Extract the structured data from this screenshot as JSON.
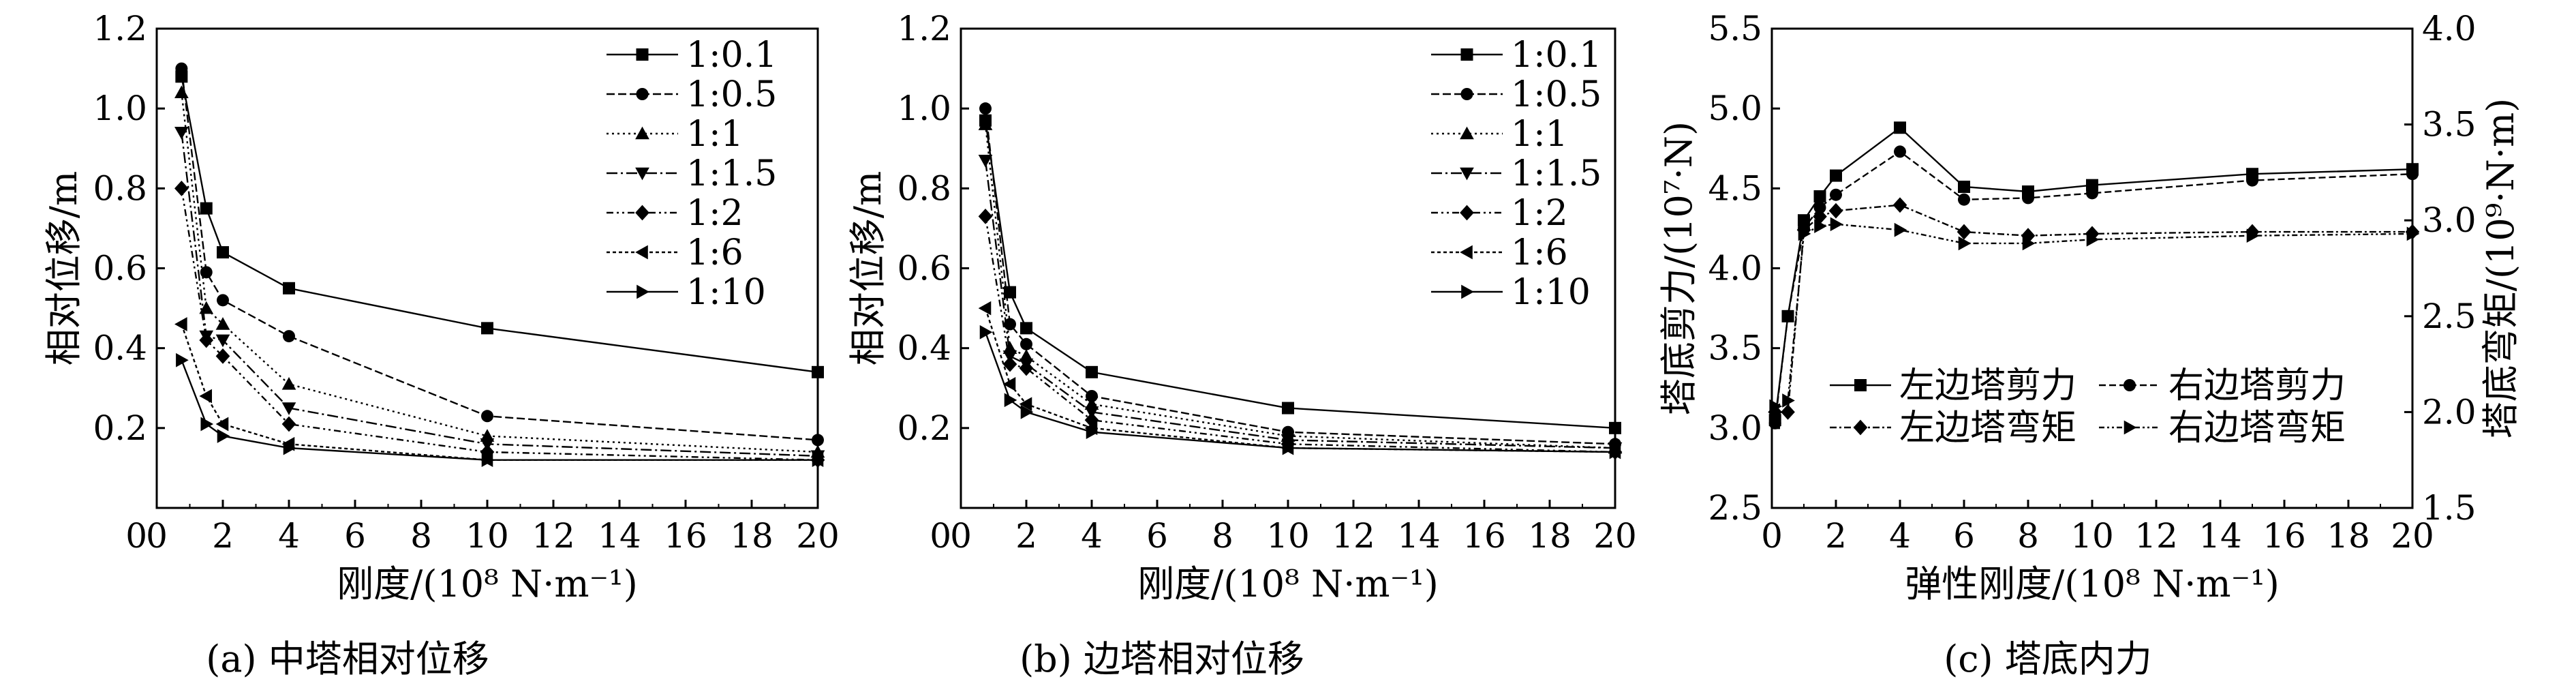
{
  "figure": {
    "panels": [
      {
        "caption": "(a) 中塔相对位移"
      },
      {
        "caption": "(b) 边塔相对位移"
      },
      {
        "caption": "(c) 塔底内力"
      }
    ]
  },
  "chart_data": [
    {
      "type": "line",
      "caption": "(a) 中塔相对位移",
      "ylabel": "相对位移/m",
      "xlabel": "刚度/(10⁸ N·m⁻¹)",
      "xlim": [
        0,
        20
      ],
      "ylim": [
        0,
        1.2
      ],
      "xticks": [
        "0",
        "2",
        "4",
        "6",
        "8",
        "10",
        "12",
        "14",
        "16",
        "18",
        "20"
      ],
      "yticks": [
        "0.2",
        "0.4",
        "0.6",
        "0.8",
        "1.0",
        "1.2"
      ],
      "y_origin_label": "0",
      "legend": "top-right",
      "series": [
        {
          "name": "1:0.1",
          "marker": "square",
          "dash": "",
          "x": [
            0.75,
            1.5,
            2,
            4,
            10,
            20
          ],
          "y": [
            1.08,
            0.75,
            0.64,
            0.55,
            0.45,
            0.34
          ]
        },
        {
          "name": "1:0.5",
          "marker": "circle",
          "dash": "12 5",
          "x": [
            0.75,
            1.5,
            2,
            4,
            10,
            20
          ],
          "y": [
            1.1,
            0.59,
            0.52,
            0.43,
            0.23,
            0.17
          ]
        },
        {
          "name": "1:1",
          "marker": "triangle-up",
          "dash": "3 5",
          "x": [
            0.75,
            1.5,
            2,
            4,
            10,
            20
          ],
          "y": [
            1.04,
            0.5,
            0.46,
            0.31,
            0.18,
            0.14
          ]
        },
        {
          "name": "1:1.5",
          "marker": "triangle-down",
          "dash": "16 5 3 5",
          "x": [
            0.75,
            1.5,
            2,
            4,
            10,
            20
          ],
          "y": [
            0.94,
            0.43,
            0.42,
            0.25,
            0.16,
            0.13
          ]
        },
        {
          "name": "1:2",
          "marker": "diamond",
          "dash": "10 5 3 5 3 5",
          "x": [
            0.75,
            1.5,
            2,
            4,
            10,
            20
          ],
          "y": [
            0.8,
            0.42,
            0.38,
            0.21,
            0.14,
            0.12
          ]
        },
        {
          "name": "1:6",
          "marker": "triangle-left",
          "dash": "5 4",
          "x": [
            0.75,
            1.5,
            2,
            4,
            10,
            20
          ],
          "y": [
            0.46,
            0.28,
            0.21,
            0.16,
            0.12,
            0.12
          ]
        },
        {
          "name": "1:10",
          "marker": "triangle-right",
          "dash": "",
          "x": [
            0.75,
            1.5,
            2,
            4,
            10,
            20
          ],
          "y": [
            0.37,
            0.21,
            0.18,
            0.15,
            0.12,
            0.12
          ]
        }
      ]
    },
    {
      "type": "line",
      "caption": "(b) 边塔相对位移",
      "ylabel": "相对位移/m",
      "xlabel": "刚度/(10⁸ N·m⁻¹)",
      "xlim": [
        0,
        20
      ],
      "ylim": [
        0,
        1.2
      ],
      "xticks": [
        "0",
        "2",
        "4",
        "6",
        "8",
        "10",
        "12",
        "14",
        "16",
        "18",
        "20"
      ],
      "yticks": [
        "0.2",
        "0.4",
        "0.6",
        "0.8",
        "1.0",
        "1.2"
      ],
      "y_origin_label": "0",
      "legend": "top-right",
      "series": [
        {
          "name": "1:0.1",
          "marker": "square",
          "dash": "",
          "x": [
            0.75,
            1.5,
            2,
            4,
            10,
            20
          ],
          "y": [
            0.97,
            0.54,
            0.45,
            0.34,
            0.25,
            0.2
          ]
        },
        {
          "name": "1:0.5",
          "marker": "circle",
          "dash": "12 5",
          "x": [
            0.75,
            1.5,
            2,
            4,
            10,
            20
          ],
          "y": [
            1.0,
            0.46,
            0.41,
            0.28,
            0.19,
            0.16
          ]
        },
        {
          "name": "1:1",
          "marker": "triangle-up",
          "dash": "3 5",
          "x": [
            0.75,
            1.5,
            2,
            4,
            10,
            20
          ],
          "y": [
            0.96,
            0.4,
            0.38,
            0.26,
            0.18,
            0.15
          ]
        },
        {
          "name": "1:1.5",
          "marker": "triangle-down",
          "dash": "16 5 3 5",
          "x": [
            0.75,
            1.5,
            2,
            4,
            10,
            20
          ],
          "y": [
            0.87,
            0.38,
            0.36,
            0.24,
            0.17,
            0.15
          ]
        },
        {
          "name": "1:2",
          "marker": "diamond",
          "dash": "10 5 3 5 3 5",
          "x": [
            0.75,
            1.5,
            2,
            4,
            10,
            20
          ],
          "y": [
            0.73,
            0.36,
            0.35,
            0.22,
            0.16,
            0.14
          ]
        },
        {
          "name": "1:6",
          "marker": "triangle-left",
          "dash": "5 4",
          "x": [
            0.75,
            1.5,
            2,
            4,
            10,
            20
          ],
          "y": [
            0.5,
            0.31,
            0.26,
            0.2,
            0.15,
            0.14
          ]
        },
        {
          "name": "1:10",
          "marker": "triangle-right",
          "dash": "",
          "x": [
            0.75,
            1.5,
            2,
            4,
            10,
            20
          ],
          "y": [
            0.44,
            0.27,
            0.24,
            0.19,
            0.15,
            0.14
          ]
        }
      ]
    },
    {
      "type": "line",
      "caption": "(c) 塔底内力",
      "ylabel": "塔底剪力/(10⁷·N)",
      "ylabel2": "塔底弯矩/(10⁹·N·m)",
      "xlabel": "弹性刚度/(10⁸ N·m⁻¹)",
      "xlim": [
        0,
        20
      ],
      "ylim": [
        2.5,
        5.5
      ],
      "y2lim": [
        1.5,
        4.0
      ],
      "xticks": [
        "0",
        "2",
        "4",
        "6",
        "8",
        "10",
        "12",
        "14",
        "16",
        "18",
        "20"
      ],
      "yticks": [
        "2.5",
        "3.0",
        "3.5",
        "4.0",
        "4.5",
        "5.0",
        "5.5"
      ],
      "y2ticks": [
        "1.5",
        "2.0",
        "2.5",
        "3.0",
        "3.5",
        "4.0"
      ],
      "legend": "lower-center",
      "series": [
        {
          "name": "左边塔剪力",
          "axis": "left",
          "marker": "square",
          "dash": "",
          "x": [
            0.1,
            0.5,
            1,
            1.5,
            2,
            4,
            6,
            8,
            10,
            15,
            20
          ],
          "y": [
            3.05,
            3.7,
            4.3,
            4.45,
            4.58,
            4.88,
            4.51,
            4.48,
            4.52,
            4.59,
            4.62
          ]
        },
        {
          "name": "右边塔剪力",
          "axis": "left",
          "marker": "circle",
          "dash": "10 5",
          "x": [
            0.1,
            0.5,
            1,
            1.5,
            2,
            4,
            6,
            8,
            10,
            15,
            20
          ],
          "y": [
            3.03,
            3.7,
            4.25,
            4.38,
            4.46,
            4.73,
            4.43,
            4.44,
            4.47,
            4.55,
            4.59
          ]
        },
        {
          "name": "左边塔弯矩",
          "axis": "right",
          "marker": "diamond",
          "dash": "10 4 3 4",
          "x": [
            0.1,
            0.5,
            1,
            1.5,
            2,
            4,
            6,
            8,
            10,
            15,
            20
          ],
          "y": [
            2.0,
            2.0,
            2.95,
            3.02,
            3.05,
            3.08,
            2.94,
            2.92,
            2.93,
            2.94,
            2.94
          ]
        },
        {
          "name": "右边塔弯矩",
          "axis": "right",
          "marker": "triangle-right",
          "dash": "8 4 3 4 3 4",
          "x": [
            0.1,
            0.5,
            1,
            1.5,
            2,
            4,
            6,
            8,
            10,
            15,
            20
          ],
          "y": [
            2.03,
            2.06,
            2.93,
            2.97,
            2.98,
            2.95,
            2.88,
            2.88,
            2.9,
            2.92,
            2.93
          ]
        }
      ]
    }
  ]
}
